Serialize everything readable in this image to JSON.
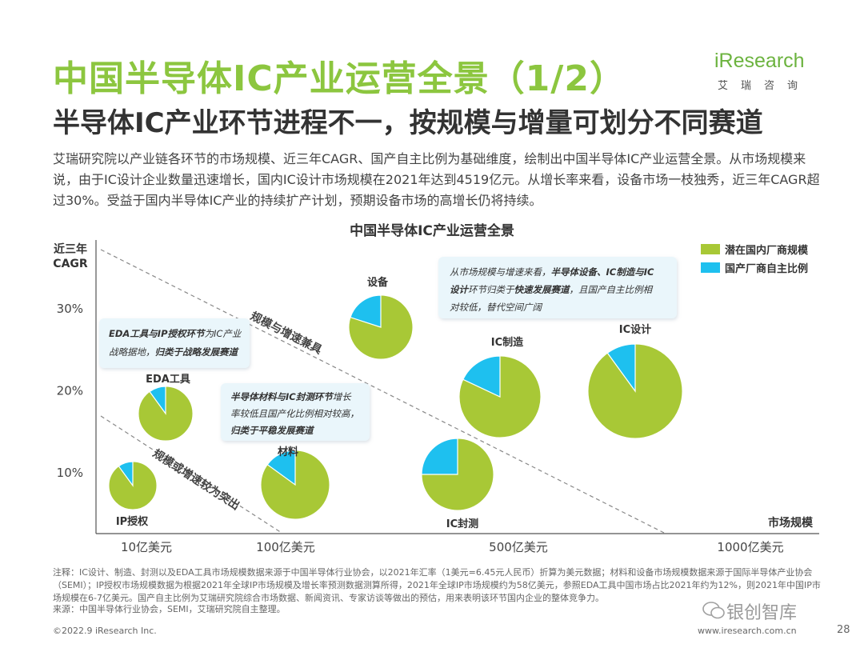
{
  "page": {
    "title": "中国半导体IC产业运营全景（1/2）",
    "subtitle": "半导体IC产业环节进程不一，按规模与增量可划分不同赛道",
    "intro": "艾瑞研究院以产业链各环节的市场规模、近三年CAGR、国产自主比例为基础维度，绘制出中国半导体IC产业运营全景。从市场规模来说，由于IC设计企业数量迅速增长，国内IC设计市场规模在2021年达到4519亿元。从增长率来看，设备市场一枝独秀，近三年CAGR超过30%。受益于国内半导体IC产业的持续扩产计划，预期设备市场的高增长仍将持续。",
    "note": "注释：IC设计、制造、封测以及EDA工具市场规模数据来源于中国半导体行业协会，以2021年汇率（1美元=6.45元人民币）折算为美元数据；材料和设备市场规模数据来源于国际半导体产业协会（SEMI）；IP授权市场规模数据为根据2021年全球IP市场规模及增长率预测数据测算所得，2021年全球IP市场规模约为58亿美元，参照EDA工具中国市场占比2021年约为12%，则2021年中国IP市场规模在6-7亿美元。国产自主比例为艾瑞研究院综合市场数据、新闻资讯、专家访谈等做出的预估，用来表明该环节国内企业的整体竞争力。",
    "source": "来源：中国半导体行业协会，SEMI，艾瑞研究院自主整理。",
    "copyright": "©2022.9 iResearch Inc.",
    "site": "www.iresearch.com.cn",
    "page_number": "28",
    "watermark": "银创智库"
  },
  "logo": {
    "brand": "iResearch",
    "brand_cn": "艾瑞咨询"
  },
  "colors": {
    "green": "#a8c836",
    "cyan": "#1ec0ef",
    "title_green": "#8cc63f",
    "callout_bg": "#eaf6fb"
  },
  "chart_data": {
    "type": "bubble-pie",
    "title": "中国半导体IC产业运营全景",
    "ylabel": "近三年\nCAGR",
    "xlabel": "市场规模",
    "yticks": [
      "30%",
      "20%",
      "10%"
    ],
    "ytick_values": [
      30,
      20,
      10
    ],
    "xticks": [
      "10亿美元",
      "100亿美元",
      "500亿美元",
      "1000亿美元"
    ],
    "legend": [
      "潜在国内厂商规模",
      "国产厂商自主比例"
    ],
    "band_labels": [
      "规模与增速兼具",
      "规模或增速较为突出"
    ],
    "points": [
      {
        "name": "IP授权",
        "domestic_share": 0.1
      },
      {
        "name": "EDA工具",
        "domestic_share": 0.1
      },
      {
        "name": "材料",
        "domestic_share": 0.15
      },
      {
        "name": "设备",
        "domestic_share": 0.2
      },
      {
        "name": "IC封测",
        "domestic_share": 0.25
      },
      {
        "name": "IC制造",
        "domestic_share": 0.18
      },
      {
        "name": "IC设计",
        "domestic_share": 0.1
      }
    ],
    "callouts": [
      {
        "line1_bold": "EDA工具与IP授权环节",
        "line1_rest": "为IC产业",
        "line2_pre": "战略据地，",
        "line2_bold": "归类于战略发展赛道"
      },
      {
        "line1_bold": "半导体材料与IC封测环节",
        "line1_rest": "增长",
        "line2_pre": "率较低且国产化比例相对较高，",
        "line3_bold": "归类于平稳发展赛道"
      },
      {
        "line1_pre": "从市场规模与增速来看，",
        "line1_bold": "半导体设备、IC制造与IC",
        "line2_bold": "设计",
        "line2_pre": "环节归类于",
        "line2_bold2": "快速发展赛道",
        "line2_rest": "，且国产自主比例相",
        "line3": "对较低，替代空间广阔"
      }
    ]
  }
}
